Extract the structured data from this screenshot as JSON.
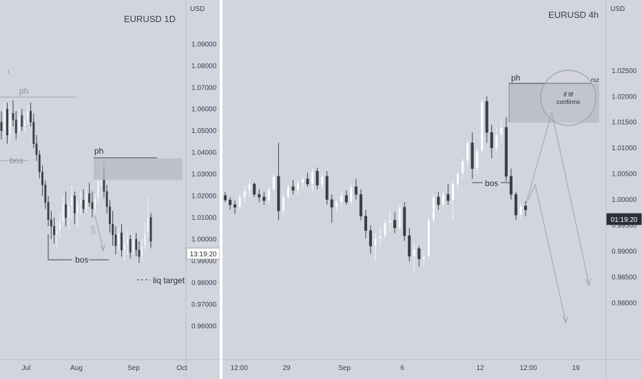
{
  "chart_data": [
    {
      "type": "candlestick",
      "title": "EURUSD 1D",
      "currency": "USD",
      "y_ticks": [
        "1.09000",
        "1.08000",
        "1.07000",
        "1.06000",
        "1.05000",
        "1.04000",
        "1.03000",
        "1.02000",
        "1.01000",
        "1.00000",
        "0.99000",
        "0.98000",
        "0.97000",
        "0.96000"
      ],
      "x_ticks": [
        "Jul",
        "Aug",
        "Sep",
        "Oct"
      ],
      "ylim": [
        0.951,
        1.098
      ],
      "price_label": "13:19:20",
      "annotations": {
        "ph_top": "ph",
        "bos_left": "bos",
        "ph": "ph",
        "bos": "bos",
        "liq": "liq target"
      },
      "candles": [
        [
          1.054,
          1.059,
          1.046,
          1.05
        ],
        [
          1.05,
          1.063,
          1.047,
          1.06
        ],
        [
          1.06,
          1.063,
          1.044,
          1.048
        ],
        [
          1.048,
          1.061,
          1.046,
          1.058
        ],
        [
          1.058,
          1.064,
          1.052,
          1.055
        ],
        [
          1.055,
          1.059,
          1.046,
          1.049
        ],
        [
          1.049,
          1.06,
          1.048,
          1.057
        ],
        [
          1.057,
          1.06,
          1.05,
          1.052
        ],
        [
          1.052,
          1.058,
          1.049,
          1.055
        ],
        [
          1.055,
          1.062,
          1.053,
          1.059
        ],
        [
          1.059,
          1.063,
          1.052,
          1.054
        ],
        [
          1.054,
          1.058,
          1.042,
          1.044
        ],
        [
          1.044,
          1.048,
          1.036,
          1.039
        ],
        [
          1.039,
          1.041,
          1.028,
          1.031
        ],
        [
          1.031,
          1.034,
          1.02,
          1.025
        ],
        [
          1.025,
          1.027,
          1.014,
          1.017
        ],
        [
          1.017,
          1.02,
          1.006,
          1.009
        ],
        [
          1.009,
          1.013,
          1.0,
          1.006
        ],
        [
          1.006,
          1.01,
          0.998,
          1.002
        ],
        [
          1.002,
          1.008,
          0.996,
          1.004
        ],
        [
          1.004,
          1.012,
          1.001,
          1.008
        ],
        [
          1.008,
          1.02,
          1.006,
          1.016
        ],
        [
          1.016,
          1.022,
          1.006,
          1.01
        ],
        [
          1.01,
          1.018,
          1.004,
          1.015
        ],
        [
          1.015,
          1.025,
          1.009,
          1.02
        ],
        [
          1.02,
          1.022,
          1.007,
          1.012
        ],
        [
          1.012,
          1.018,
          1.005,
          1.016
        ],
        [
          1.016,
          1.022,
          1.011,
          1.018
        ],
        [
          1.018,
          1.023,
          1.012,
          1.014
        ],
        [
          1.014,
          1.024,
          1.012,
          1.021
        ],
        [
          1.021,
          1.026,
          1.015,
          1.017
        ],
        [
          1.017,
          1.022,
          1.01,
          1.014
        ],
        [
          1.014,
          1.021,
          1.012,
          1.019
        ],
        [
          1.019,
          1.03,
          1.017,
          1.027
        ],
        [
          1.027,
          1.037,
          1.024,
          1.033
        ],
        [
          1.033,
          1.035,
          1.019,
          1.022
        ],
        [
          1.022,
          1.025,
          1.012,
          1.015
        ],
        [
          1.015,
          1.018,
          1.003,
          1.007
        ],
        [
          1.007,
          1.013,
          0.997,
          1.002
        ],
        [
          1.002,
          1.006,
          0.993,
          0.997
        ],
        [
          0.997,
          1.005,
          0.995,
          1.003
        ],
        [
          1.003,
          1.007,
          0.992,
          0.995
        ],
        [
          0.995,
          1.002,
          0.99,
          0.998
        ],
        [
          0.998,
          1.004,
          0.993,
          1.0
        ],
        [
          1.0,
          1.002,
          0.991,
          0.994
        ],
        [
          0.994,
          1.002,
          0.993,
          1.0
        ],
        [
          1.0,
          1.003,
          0.992,
          0.995
        ],
        [
          0.995,
          0.999,
          0.989,
          0.992
        ],
        [
          0.992,
          1.0,
          0.99,
          0.997
        ],
        [
          0.997,
          1.008,
          0.995,
          1.003
        ],
        [
          1.003,
          1.019,
          1.001,
          1.01
        ],
        [
          1.01,
          1.012,
          0.996,
          0.999
        ]
      ]
    },
    {
      "type": "candlestick",
      "title": "EURUSD 4h",
      "currency": "USD",
      "y_ticks": [
        "1.02500",
        "1.02000",
        "1.01500",
        "1.01000",
        "1.00500",
        "1.00000",
        "0.99500",
        "0.99000",
        "0.98500",
        "0.98000"
      ],
      "x_ticks": [
        "12:00",
        "29",
        "Sep",
        "6",
        "12",
        "12:00",
        "19"
      ],
      "ylim": [
        0.9744,
        1.0301
      ],
      "price_label": "01:19:20",
      "annotations": {
        "ph": "ph",
        "rsz": "rsz",
        "bos": "bos",
        "circle_line1": "if ltf",
        "circle_line2": "confirms"
      },
      "candles": [
        [
          1.0008,
          1.0015,
          0.9995,
          0.9999
        ],
        [
          0.9999,
          1.0005,
          0.998,
          0.999
        ],
        [
          0.999,
          0.9998,
          0.9972,
          0.9985
        ],
        [
          0.9985,
          1.0012,
          0.998,
          1.0005
        ],
        [
          1.0005,
          1.0025,
          0.9995,
          1.0018
        ],
        [
          1.0018,
          1.004,
          1.0005,
          1.003
        ],
        [
          1.003,
          1.0033,
          1.0005,
          1.001
        ],
        [
          1.001,
          1.002,
          0.9995,
          1.0005
        ],
        [
          1.0005,
          1.0015,
          0.999,
          0.9998
        ],
        [
          0.9998,
          1.0025,
          0.9992,
          1.002
        ],
        [
          1.002,
          1.005,
          1.0015,
          1.0045
        ],
        [
          1.0045,
          1.011,
          0.996,
          0.9978
        ],
        [
          0.9978,
          1.001,
          0.997,
          1.0005
        ],
        [
          1.0005,
          1.003,
          1.0,
          1.0025
        ],
        [
          1.0025,
          1.0038,
          1.001,
          1.0018
        ],
        [
          1.0018,
          1.004,
          1.001,
          1.0032
        ],
        [
          1.0032,
          1.0045,
          1.002,
          1.004
        ],
        [
          1.004,
          1.0052,
          1.0025,
          1.003
        ],
        [
          1.003,
          1.006,
          1.0015,
          1.0055
        ],
        [
          1.0055,
          1.0062,
          1.002,
          1.0028
        ],
        [
          1.0028,
          1.005,
          1.002,
          1.0045
        ],
        [
          1.0045,
          1.0055,
          0.999,
          1.0
        ],
        [
          1.0,
          1.001,
          0.9955,
          0.9985
        ],
        [
          0.9985,
          1.0,
          0.9975,
          0.9995
        ],
        [
          0.9995,
          1.0015,
          0.9985,
          1.0008
        ],
        [
          1.0008,
          1.0018,
          0.999,
          0.9995
        ],
        [
          0.9995,
          1.003,
          0.999,
          1.0025
        ],
        [
          1.0025,
          1.004,
          1.0,
          1.001
        ],
        [
          1.001,
          1.002,
          0.996,
          0.9968
        ],
        [
          0.9968,
          0.998,
          0.9925,
          0.994
        ],
        [
          0.994,
          0.995,
          0.9895,
          0.991
        ],
        [
          0.991,
          0.9935,
          0.988,
          0.9925
        ],
        [
          0.9925,
          0.9945,
          0.991,
          0.993
        ],
        [
          0.993,
          0.996,
          0.9925,
          0.9955
        ],
        [
          0.9955,
          0.9978,
          0.994,
          0.996
        ],
        [
          0.996,
          0.9975,
          0.9935,
          0.9945
        ],
        [
          0.9945,
          0.999,
          0.994,
          0.9985
        ],
        [
          0.9985,
          0.9995,
          0.992,
          0.993
        ],
        [
          0.993,
          0.9945,
          0.988,
          0.989
        ],
        [
          0.989,
          0.9915,
          0.986,
          0.9905
        ],
        [
          0.9905,
          0.991,
          0.987,
          0.9885
        ],
        [
          0.9885,
          0.99,
          0.987,
          0.989
        ],
        [
          0.989,
          0.997,
          0.9885,
          0.996
        ],
        [
          0.996,
          1.001,
          0.9955,
          1.0005
        ],
        [
          1.0005,
          1.0015,
          0.998,
          0.999
        ],
        [
          0.999,
          1.0015,
          0.9985,
          1.001
        ],
        [
          1.001,
          1.003,
          0.999,
          0.9998
        ],
        [
          0.9998,
          1.004,
          0.996,
          1.003
        ],
        [
          1.003,
          1.0055,
          1.002,
          1.005
        ],
        [
          1.005,
          1.008,
          1.004,
          1.0075
        ],
        [
          1.0075,
          1.0115,
          1.0065,
          1.011
        ],
        [
          1.011,
          1.013,
          1.004,
          1.006
        ],
        [
          1.006,
          1.01,
          1.005,
          1.0095
        ],
        [
          1.0095,
          1.0195,
          1.009,
          1.019
        ],
        [
          1.019,
          1.02,
          1.011,
          1.013
        ],
        [
          1.013,
          1.0145,
          1.008,
          1.01
        ],
        [
          1.01,
          1.014,
          1.009,
          1.0125
        ],
        [
          1.0125,
          1.0155,
          1.011,
          1.014
        ],
        [
          1.014,
          1.016,
          1.0035,
          1.0045
        ],
        [
          1.0045,
          1.006,
          1.0,
          1.001
        ],
        [
          1.001,
          1.0015,
          0.996,
          0.997
        ],
        [
          0.997,
          0.9992,
          0.9962,
          0.9988
        ],
        [
          0.9988,
          0.9997,
          0.9968,
          0.998
        ]
      ]
    }
  ]
}
